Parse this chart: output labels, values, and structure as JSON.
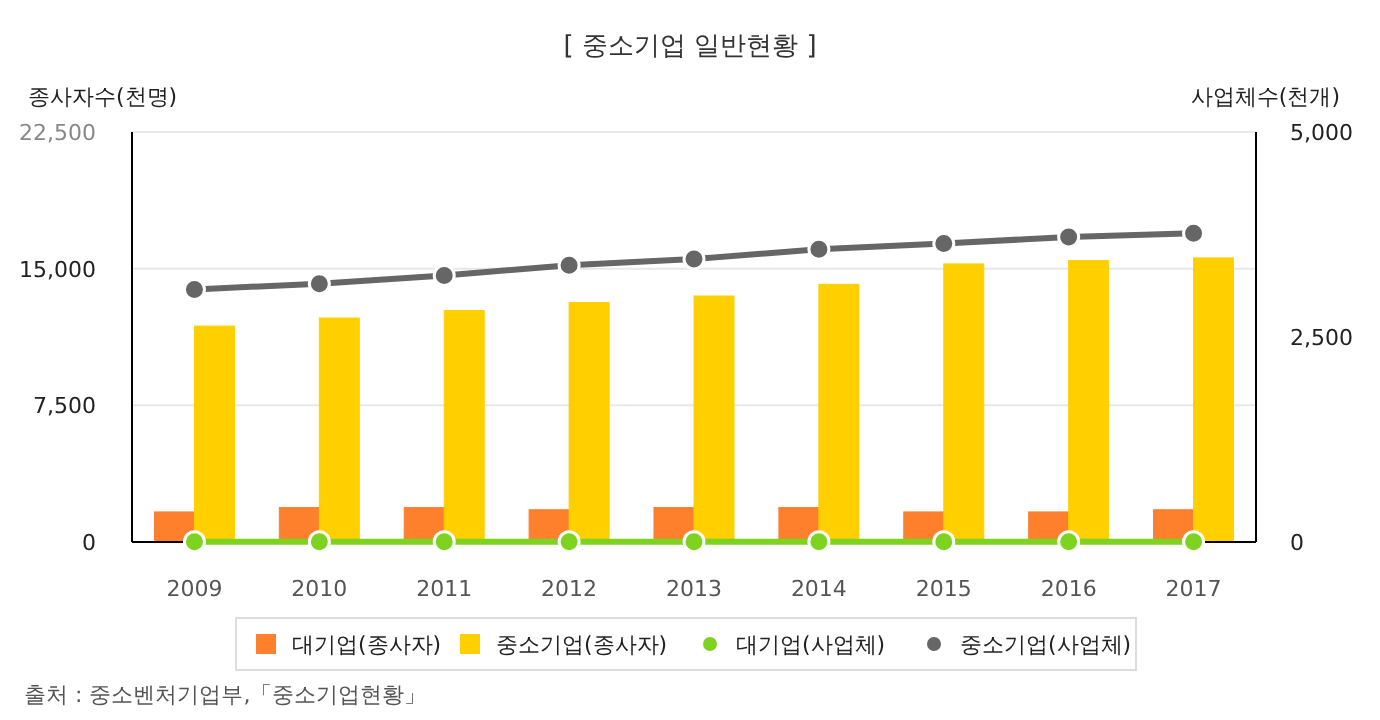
{
  "chart_data": {
    "type": "bar",
    "title": "[ 중소기업 일반현황 ]",
    "ylabel": "종사자수(천명)",
    "y2label": "사업체수(천개)",
    "categories": [
      "2009",
      "2010",
      "2011",
      "2012",
      "2013",
      "2014",
      "2015",
      "2016",
      "2017"
    ],
    "series": [
      {
        "name": "대기업(종사자)",
        "color": "#fe7f2c",
        "values": [
          1650,
          1890,
          1890,
          1770,
          1890,
          1890,
          1650,
          1650,
          1770
        ]
      },
      {
        "name": "중소기업(종사자)",
        "color": "#ffcf00",
        "values": [
          11850,
          12290,
          12700,
          13140,
          13500,
          14140,
          15260,
          15450,
          15590
        ]
      },
      {
        "name": "대기업(사업체)",
        "type": "line",
        "axis": "y2",
        "color": "#7ed321",
        "values": [
          3,
          3,
          3,
          3,
          3,
          3,
          3,
          3,
          3
        ]
      },
      {
        "name": "중소기업(사업체)",
        "type": "line",
        "axis": "y2",
        "color": "#666666",
        "values": [
          3080,
          3150,
          3250,
          3375,
          3450,
          3570,
          3640,
          3720,
          3765
        ]
      }
    ],
    "ylim": [
      0,
      22500
    ],
    "yticks": [
      {
        "value": 0,
        "label": "0"
      },
      {
        "value": 7500,
        "label": "7,500"
      },
      {
        "value": 15000,
        "label": "15,000"
      },
      {
        "value": 22500,
        "label": "22,500"
      }
    ],
    "y2lim": [
      0,
      5000
    ],
    "y2ticks": [
      {
        "value": 0,
        "label": "0"
      },
      {
        "value": 2500,
        "label": "2,500"
      },
      {
        "value": 5000,
        "label": "5,000"
      }
    ],
    "grid": "y",
    "legend": "bottom",
    "marker": "circle",
    "annotations": [
      "출처 : 중소벤처기업부,「중소기업현황」"
    ]
  }
}
